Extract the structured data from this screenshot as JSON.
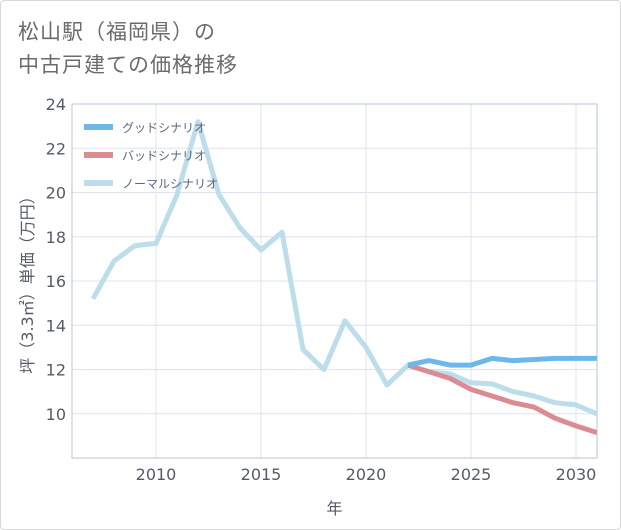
{
  "title": {
    "line1": "松山駅（福岡県）の",
    "line2": "中古戸建ての価格推移"
  },
  "chart_data": {
    "type": "line",
    "title": "松山駅（福岡県）の中古戸建ての価格推移",
    "xlabel": "年",
    "ylabel": "坪（3.3㎡）単価（万円）",
    "xlim": [
      2006,
      2031
    ],
    "ylim": [
      8,
      24
    ],
    "xticks": [
      2010,
      2015,
      2020,
      2025,
      2030
    ],
    "yticks": [
      10,
      12,
      14,
      16,
      18,
      20,
      22,
      24
    ],
    "grid": true,
    "legend_position": "top-left",
    "series": [
      {
        "name": "グッドシナリオ",
        "color": "#6cb8ea",
        "x": [
          2022,
          2023,
          2024,
          2025,
          2026,
          2027,
          2028,
          2029,
          2030,
          2031
        ],
        "values": [
          12.2,
          12.4,
          12.2,
          12.2,
          12.5,
          12.4,
          12.45,
          12.5,
          12.5,
          12.5
        ]
      },
      {
        "name": "バッドシナリオ",
        "color": "#db8c93",
        "x": [
          2022,
          2023,
          2024,
          2025,
          2026,
          2027,
          2028,
          2029,
          2030,
          2031
        ],
        "values": [
          12.2,
          11.9,
          11.6,
          11.1,
          10.8,
          10.5,
          10.3,
          9.8,
          9.45,
          9.15
        ]
      },
      {
        "name": "ノーマルシナリオ",
        "color": "#bcdde9",
        "x": [
          2007,
          2008,
          2009,
          2010,
          2011,
          2012,
          2013,
          2014,
          2015,
          2016,
          2017,
          2018,
          2019,
          2020,
          2021,
          2022,
          2023,
          2024,
          2025,
          2026,
          2027,
          2028,
          2029,
          2030,
          2031
        ],
        "values": [
          15.2,
          16.9,
          17.6,
          17.7,
          19.9,
          23.2,
          19.9,
          18.4,
          17.4,
          18.2,
          12.9,
          12.0,
          14.2,
          13.0,
          11.3,
          12.2,
          11.9,
          11.8,
          11.4,
          11.35,
          11.0,
          10.8,
          10.5,
          10.4,
          10.0
        ]
      }
    ]
  }
}
